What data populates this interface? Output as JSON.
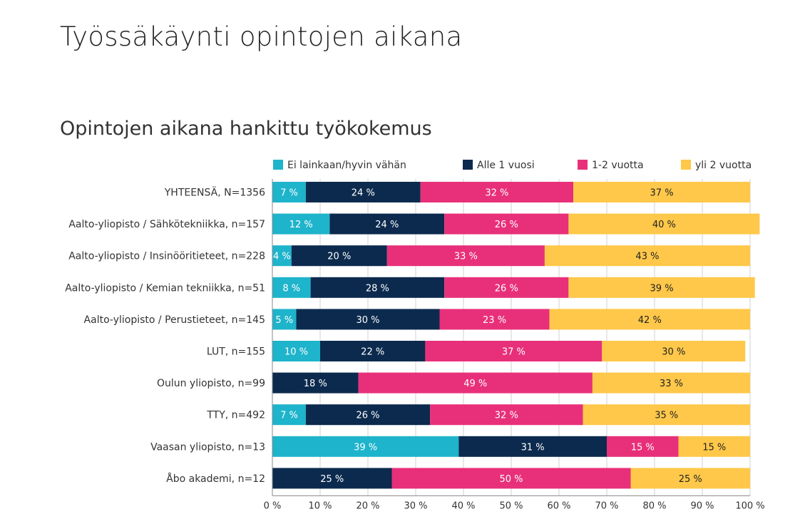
{
  "page": {
    "title": "Työssäkäynti opintojen aikana"
  },
  "chart_data": {
    "type": "bar",
    "orientation": "horizontal",
    "stacked": true,
    "title": "Opintojen aikana hankittu työkokemus",
    "categories": [
      "YHTEENSÄ, N=1356",
      "Aalto-yliopisto / Sähkötekniikka, n=157",
      "Aalto-yliopisto / Insinööritieteet, n=228",
      "Aalto-yliopisto / Kemian tekniikka, n=51",
      "Aalto-yliopisto / Perustieteet, n=145",
      "LUT, n=155",
      "Oulun yliopisto, n=99",
      "TTY, n=492",
      "Vaasan yliopisto, n=13",
      "Åbo akademi, n=12"
    ],
    "series": [
      {
        "name": "Ei lainkaan/hyvin vähän",
        "color": "#1EB4CB",
        "label_color": "#ffffff",
        "values": [
          7,
          12,
          4,
          8,
          5,
          10,
          0,
          7,
          39,
          0
        ],
        "labels": [
          "7 %",
          "12 %",
          "4 %",
          "8 %",
          "5 %",
          "10 %",
          "",
          "7 %",
          "39 %",
          ""
        ]
      },
      {
        "name": "Alle 1 vuosi",
        "color": "#0C2A4E",
        "label_color": "#ffffff",
        "values": [
          24,
          24,
          20,
          28,
          30,
          22,
          18,
          26,
          31,
          25
        ],
        "labels": [
          "24 %",
          "24 %",
          "20 %",
          "28 %",
          "30 %",
          "22 %",
          "18 %",
          "26 %",
          "31 %",
          "25 %"
        ]
      },
      {
        "name": "1-2 vuotta",
        "color": "#E8307A",
        "label_color": "#ffffff",
        "values": [
          32,
          26,
          33,
          26,
          23,
          37,
          49,
          32,
          15,
          50
        ],
        "labels": [
          "32 %",
          "26 %",
          "33 %",
          "26 %",
          "23 %",
          "37 %",
          "49 %",
          "32 %",
          "15 %",
          "50 %"
        ]
      },
      {
        "name": "yli 2 vuotta",
        "color": "#FFC84A",
        "label_color": "#222222",
        "values": [
          37,
          40,
          43,
          39,
          42,
          30,
          33,
          35,
          15,
          25
        ],
        "labels": [
          "37 %",
          "40 %",
          "43 %",
          "39 %",
          "42 %",
          "30 %",
          "33 %",
          "35 %",
          "15 %",
          "25 %"
        ]
      }
    ],
    "xlim": [
      0,
      100
    ],
    "x_ticks": [
      "0 %",
      "10 %",
      "20 %",
      "30 %",
      "40 %",
      "50 %",
      "60 %",
      "70 %",
      "80 %",
      "90 %",
      "100 %"
    ],
    "grid": true,
    "legend_position": "top"
  }
}
